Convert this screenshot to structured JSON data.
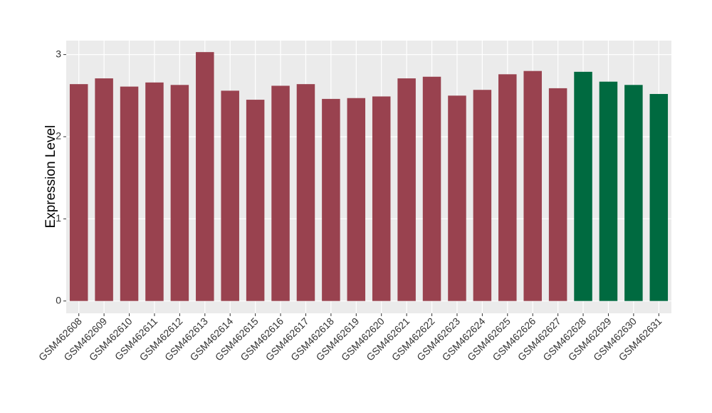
{
  "chart_data": {
    "type": "bar",
    "y_label": "Expression Level",
    "categories": [
      "GSM462608",
      "GSM462609",
      "GSM462610",
      "GSM462611",
      "GSM462612",
      "GSM462613",
      "GSM462614",
      "GSM462615",
      "GSM462616",
      "GSM462617",
      "GSM462618",
      "GSM462619",
      "GSM462620",
      "GSM462621",
      "GSM462622",
      "GSM462623",
      "GSM462624",
      "GSM462625",
      "GSM462626",
      "GSM462627",
      "GSM462628",
      "GSM462629",
      "GSM462630",
      "GSM462631"
    ],
    "values": [
      2.64,
      2.71,
      2.61,
      2.66,
      2.63,
      3.03,
      2.56,
      2.45,
      2.62,
      2.64,
      2.46,
      2.47,
      2.49,
      2.71,
      2.73,
      2.5,
      2.57,
      2.76,
      2.8,
      2.59,
      2.79,
      2.67,
      2.63,
      2.52
    ],
    "colors": [
      "#99424f",
      "#99424f",
      "#99424f",
      "#99424f",
      "#99424f",
      "#99424f",
      "#99424f",
      "#99424f",
      "#99424f",
      "#99424f",
      "#99424f",
      "#99424f",
      "#99424f",
      "#99424f",
      "#99424f",
      "#99424f",
      "#99424f",
      "#99424f",
      "#99424f",
      "#99424f",
      "#006a40",
      "#006a40",
      "#006a40",
      "#006a40"
    ],
    "ylim": [
      -0.15,
      3.17
    ],
    "yticks": [
      0,
      1,
      2,
      3
    ],
    "grid": true
  }
}
